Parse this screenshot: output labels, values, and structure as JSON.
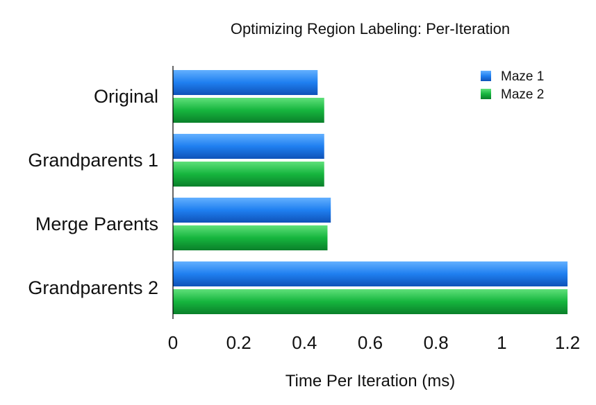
{
  "chart_data": {
    "type": "bar",
    "orientation": "horizontal",
    "title": "Optimizing Region Labeling: Per-Iteration",
    "xlabel": "Time Per Iteration (ms)",
    "ylabel": "",
    "categories": [
      "Original",
      "Grandparents 1",
      "Merge Parents",
      "Grandparents 2"
    ],
    "series": [
      {
        "name": "Maze 1",
        "color": "#1f6fdc",
        "values": [
          0.44,
          0.46,
          0.48,
          1.2
        ]
      },
      {
        "name": "Maze 2",
        "color": "#14a83a",
        "values": [
          0.46,
          0.46,
          0.47,
          1.2
        ]
      }
    ],
    "xlim": [
      0,
      1.2
    ],
    "xticks": [
      "0",
      "0.2",
      "0.4",
      "0.6",
      "0.8",
      "1",
      "1.2"
    ],
    "grid": false,
    "legend": "top-right"
  }
}
